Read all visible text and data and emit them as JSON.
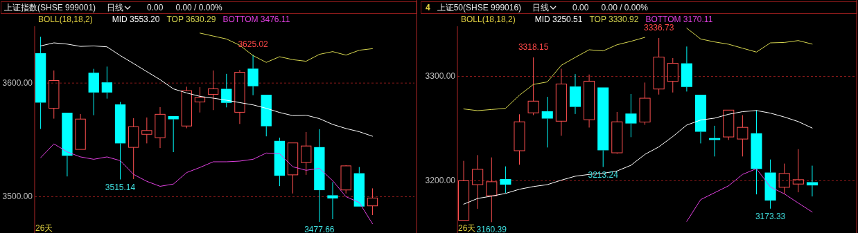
{
  "chart_data": [
    {
      "type": "candlestick",
      "title": "上证指数(SHSE 999001)",
      "legend_title": "BOLL(18,18,2)",
      "legend": "top left",
      "grid": "y",
      "annotations": [
        "日线",
        "0.00",
        "0.00 / 0.00%",
        "26天",
        {
          "text": "3625.02",
          "y": 3625.02
        },
        {
          "text": "3515.14",
          "y": 3515.14
        },
        {
          "text": "3477.66",
          "y": 3477.66
        }
      ],
      "categories": [
        null,
        null,
        null,
        null,
        null,
        null,
        null,
        null,
        null,
        null,
        null,
        null,
        null,
        null,
        null,
        null,
        null,
        null,
        null,
        null,
        null,
        null,
        null,
        null,
        null,
        null
      ],
      "ylim": [
        3468,
        3650
      ],
      "yticks": [
        {
          "value": 3600,
          "label": "3600.00"
        },
        {
          "value": 3500,
          "label": "3500.00"
        }
      ],
      "ohlc": [
        [
          3626.3,
          3640.8,
          3559.6,
          3582.8
        ],
        [
          3577.8,
          3611.1,
          3568.7,
          3602.2
        ],
        [
          3573.9,
          3573.9,
          3517.8,
          3536.0
        ],
        [
          3541.6,
          3572.7,
          3541.6,
          3568.3
        ],
        [
          3609.1,
          3612.5,
          3571.7,
          3591.7
        ],
        [
          3600.6,
          3614.5,
          3586.3,
          3591.7
        ],
        [
          3581.2,
          3583.4,
          3515.14,
          3546.9
        ],
        [
          3543.4,
          3569.1,
          3515.5,
          3561.6
        ],
        [
          3554.9,
          3569.7,
          3546.9,
          3558.2
        ],
        [
          3551.9,
          3578.8,
          3542.8,
          3572.5
        ],
        [
          3570.9,
          3570.9,
          3539.2,
          3568.1
        ],
        [
          3562.2,
          3596.8,
          3560.2,
          3593.3
        ],
        [
          3583.4,
          3596.4,
          3574.1,
          3587.3
        ],
        [
          3590.1,
          3611.1,
          3576.2,
          3594.9
        ],
        [
          3594.9,
          3608.1,
          3578.6,
          3582.6
        ],
        [
          3574.3,
          3611.5,
          3564.0,
          3609.5
        ],
        [
          3612.7,
          3625.02,
          3589.3,
          3597.2
        ],
        [
          3589.7,
          3589.7,
          3553.1,
          3562.0
        ],
        [
          3549.1,
          3551.9,
          3509.3,
          3518.4
        ],
        [
          3519.2,
          3547.3,
          3502.8,
          3547.3
        ],
        [
          3530.1,
          3556.9,
          3519.2,
          3544.6
        ],
        [
          3543.6,
          3559.4,
          3477.66,
          3505.7
        ],
        [
          3501.2,
          3512.7,
          3480.2,
          3498.4
        ],
        [
          3505.9,
          3527.7,
          3502.8,
          3527.1
        ],
        [
          3520.6,
          3526.1,
          3491.3,
          3491.3
        ],
        [
          3491.9,
          3507.3,
          3483.8,
          3498.8
        ]
      ],
      "colors": [
        "#00ffff",
        "#ff5050",
        "#00ffff",
        "#ff5050",
        "#00ffff",
        "#00ffff",
        "#00ffff",
        "#ff5050",
        "#ff5050",
        "#ff5050",
        "#00ffff",
        "#ff5050",
        "#ff5050",
        "#ff5050",
        "#00ffff",
        "#ff5050",
        "#00ffff",
        "#00ffff",
        "#00ffff",
        "#ff5050",
        "#ff5050",
        "#00ffff",
        "#00ffff",
        "#ff5050",
        "#00ffff",
        "#ff5050"
      ],
      "series": [
        {
          "name": "MID 3553.20",
          "type": "line",
          "color": "#ffffff",
          "values": [
            3632.7,
            3635.4,
            3634.3,
            3632.3,
            3632.7,
            3631.9,
            3624.2,
            3617.2,
            3610.1,
            3603.0,
            3594.9,
            3591.3,
            3588.3,
            3586.7,
            3584.9,
            3582.8,
            3580.8,
            3577.8,
            3574.1,
            3571.3,
            3571.7,
            3568.7,
            3563.6,
            3560.0,
            3557.2,
            3553.2
          ]
        },
        {
          "name": "TOP 3630.29",
          "type": "line",
          "color": "#d8d850",
          "values": [
            null,
            null,
            null,
            null,
            null,
            null,
            null,
            null,
            null,
            null,
            null,
            null,
            3644.0,
            3641.4,
            3638.8,
            3633.3,
            3624.2,
            3618.2,
            3623.2,
            3620.6,
            3619.2,
            3625.3,
            3627.7,
            3624.6,
            3628.9,
            3630.29
          ]
        },
        {
          "name": "BOTTOM 3476.11",
          "type": "line",
          "color": "#e040e0",
          "values": [
            3534.3,
            3546.5,
            3539.4,
            3535.0,
            3532.9,
            3535.0,
            3531.7,
            3519.6,
            3513.5,
            3509.1,
            3511.1,
            3521.2,
            3525.7,
            3530.7,
            3530.7,
            3531.3,
            3532.9,
            3538.4,
            3537.8,
            3526.3,
            3523.2,
            3524.9,
            3514.1,
            3500.0,
            3494.9,
            3476.11
          ]
        }
      ]
    },
    {
      "type": "candlestick",
      "title": "上证50(SHSE 999016)",
      "subtitle": "4",
      "legend_title": "BOLL(18,18,2)",
      "legend": "top left",
      "grid": "y",
      "annotations": [
        "日线",
        "0.00",
        "0.00 / 0.00%",
        "26天",
        {
          "text": "3336.73",
          "y": 3336.73
        },
        {
          "text": "3318.15",
          "y": 3318.15
        },
        {
          "text": "3213.24",
          "y": 3213.24
        },
        {
          "text": "3160.39",
          "y": 3160.39
        },
        {
          "text": "3173.33",
          "y": 3173.33
        }
      ],
      "categories": [
        null,
        null,
        null,
        null,
        null,
        null,
        null,
        null,
        null,
        null,
        null,
        null,
        null,
        null,
        null,
        null,
        null,
        null,
        null,
        null,
        null,
        null,
        null,
        null,
        null,
        null
      ],
      "ylim": [
        3150,
        3348
      ],
      "yticks": [
        {
          "value": 3300,
          "label": "3300.00"
        },
        {
          "value": 3200,
          "label": "3200.00"
        }
      ],
      "ohlc": [
        [
          3162.2,
          3219.1,
          3162.2,
          3200.0
        ],
        [
          3196.3,
          3224.6,
          3173.2,
          3211.0
        ],
        [
          3185.7,
          3222.4,
          3160.39,
          3199.1
        ],
        [
          3201.7,
          3213.8,
          3188.3,
          3196.3
        ],
        [
          3228.8,
          3263.7,
          3215.4,
          3256.5
        ],
        [
          3265.1,
          3318.15,
          3262.9,
          3276.3
        ],
        [
          3266.6,
          3280.4,
          3231.9,
          3259.6
        ],
        [
          3257.1,
          3307.3,
          3243.1,
          3292.7
        ],
        [
          3290.3,
          3302.2,
          3264.0,
          3270.8
        ],
        [
          3258.5,
          3301.8,
          3251.0,
          3295.4
        ],
        [
          3289.4,
          3289.4,
          3213.24,
          3229.2
        ],
        [
          3226.8,
          3265.9,
          3225.9,
          3256.5
        ],
        [
          3264.4,
          3283.1,
          3241.8,
          3254.9
        ],
        [
          3256.3,
          3294.1,
          3253.6,
          3279.1
        ],
        [
          3287.9,
          3336.73,
          3282.6,
          3318.5
        ],
        [
          3295.2,
          3317.6,
          3284.6,
          3312.5
        ],
        [
          3312.5,
          3328.6,
          3285.5,
          3289.9
        ],
        [
          3282.4,
          3282.4,
          3235.8,
          3247.0
        ],
        [
          3240.9,
          3252.7,
          3223.3,
          3239.1
        ],
        [
          3242.0,
          3267.7,
          3239.1,
          3267.7
        ],
        [
          3240.0,
          3262.9,
          3223.3,
          3251.2
        ],
        [
          3245.5,
          3267.7,
          3187.0,
          3211.4
        ],
        [
          3207.9,
          3220.4,
          3173.33,
          3181.1
        ],
        [
          3193.8,
          3216.5,
          3187.7,
          3207.0
        ],
        [
          3196.9,
          3230.3,
          3189.0,
          3201.1
        ],
        [
          3198.7,
          3214.5,
          3185.0,
          3195.6
        ]
      ],
      "colors": [
        "#ff5050",
        "#ff5050",
        "#ff5050",
        "#00ffff",
        "#ff5050",
        "#ff5050",
        "#00ffff",
        "#ff5050",
        "#00ffff",
        "#ff5050",
        "#00ffff",
        "#ff5050",
        "#00ffff",
        "#ff5050",
        "#ff5050",
        "#ff5050",
        "#00ffff",
        "#00ffff",
        "#00ffff",
        "#ff5050",
        "#ff5050",
        "#00ffff",
        "#00ffff",
        "#ff5050",
        "#ff5050",
        "#00ffff"
      ],
      "series": [
        {
          "name": "MID 3250.51",
          "type": "line",
          "color": "#ffffff",
          "values": [
            3177.6,
            3183.1,
            3185.3,
            3187.9,
            3191.9,
            3194.5,
            3196.3,
            3200.6,
            3204.4,
            3206.1,
            3207.2,
            3209.4,
            3214.9,
            3225.3,
            3232.5,
            3242.4,
            3253.4,
            3258.2,
            3260.0,
            3263.7,
            3266.2,
            3267.3,
            3264.8,
            3261.1,
            3256.7,
            3250.51
          ]
        },
        {
          "name": "TOP 3330.92",
          "type": "line",
          "color": "#d8d850",
          "values": [
            3268.8,
            3267.2,
            3268.3,
            3269.4,
            3282.0,
            3292.3,
            3294.7,
            3310.6,
            3318.2,
            3325.5,
            3324.4,
            3330.3,
            3333.6,
            3337.4,
            null,
            null,
            3346.2,
            3335.8,
            3333.0,
            3330.8,
            3327.0,
            3323.3,
            3332.1,
            3332.5,
            3334.3,
            3330.92
          ]
        },
        {
          "name": "BOTTOM 3170.11",
          "type": "line",
          "color": "#e040e0",
          "values": [
            null,
            null,
            null,
            null,
            null,
            null,
            null,
            null,
            null,
            null,
            null,
            null,
            null,
            null,
            null,
            null,
            3161.1,
            3182.0,
            3188.6,
            3195.2,
            3206.1,
            3211.6,
            3194.1,
            3187.5,
            3178.7,
            3170.11
          ]
        }
      ]
    }
  ]
}
